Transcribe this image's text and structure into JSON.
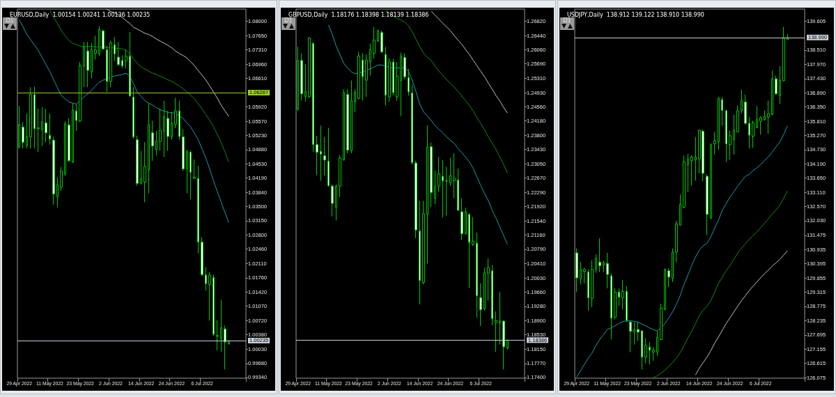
{
  "chart_data": [
    {
      "type": "candlestick",
      "title": "EURUSD,Daily  1.00154 1.00241 1.00136 1.00235",
      "annotations": [
        "D1"
      ],
      "color": "#00c800",
      "categories": [
        "29 Apr 2022",
        null,
        null,
        null,
        null,
        null,
        null,
        null,
        "11 May 2022",
        null,
        null,
        null,
        null,
        null,
        null,
        null,
        "23 May 2022",
        null,
        null,
        null,
        null,
        null,
        null,
        null,
        "2 Jun 2022",
        null,
        null,
        null,
        null,
        null,
        null,
        null,
        "14 Jun 2022",
        null,
        null,
        null,
        null,
        null,
        null,
        null,
        "24 Jun 2022",
        null,
        null,
        null,
        null,
        null,
        null,
        null,
        "6 Jul 2022",
        null,
        null,
        null,
        null,
        null,
        null,
        null,
        null,
        null,
        null,
        null
      ],
      "ohlc": [
        [
          1.0494,
          1.0594,
          1.0491,
          1.0549
        ],
        [
          1.0543,
          1.0555,
          1.0491,
          1.0506
        ],
        [
          1.0498,
          1.0576,
          1.0491,
          1.0519
        ],
        [
          1.0519,
          1.064,
          1.0491,
          1.0622
        ],
        [
          1.0622,
          1.0641,
          1.0491,
          1.0539
        ],
        [
          1.0539,
          1.0588,
          1.0482,
          1.0541
        ],
        [
          1.0537,
          1.0591,
          1.0497,
          1.0556
        ],
        [
          1.0553,
          1.0587,
          1.0506,
          1.0529
        ],
        [
          1.0523,
          1.0576,
          1.05,
          1.0514
        ],
        [
          1.0511,
          1.0519,
          1.0354,
          1.038
        ],
        [
          1.0373,
          1.0421,
          1.0348,
          1.0403
        ],
        [
          1.0397,
          1.0446,
          1.0388,
          1.0436
        ],
        [
          1.0429,
          1.0557,
          1.0424,
          1.0551
        ],
        [
          1.0548,
          1.0564,
          1.0458,
          1.0461
        ],
        [
          1.0458,
          1.0601,
          1.0455,
          1.0584
        ],
        [
          1.0582,
          1.0598,
          1.0534,
          1.0559
        ],
        [
          1.0558,
          1.0701,
          1.0555,
          1.0692
        ],
        [
          1.0691,
          1.075,
          1.064,
          1.0737
        ],
        [
          1.0728,
          1.075,
          1.064,
          1.0681
        ],
        [
          1.0677,
          1.0747,
          1.0661,
          1.0731
        ],
        [
          1.0722,
          1.0765,
          1.0707,
          1.0731
        ],
        [
          1.0722,
          1.0788,
          1.0716,
          1.078
        ],
        [
          1.0777,
          1.078,
          1.0731,
          1.0733
        ],
        [
          1.0731,
          1.074,
          1.0628,
          1.0654
        ],
        [
          1.0654,
          1.0753,
          1.064,
          1.0748
        ],
        [
          1.0743,
          1.0762,
          1.0704,
          1.0721
        ],
        [
          1.0713,
          1.075,
          1.0692,
          1.0695
        ],
        [
          1.0705,
          1.0717,
          1.0686,
          1.0692
        ],
        [
          1.0704,
          1.0731,
          1.0686,
          1.0715
        ],
        [
          1.0715,
          1.0774,
          1.0616,
          1.0619
        ],
        [
          1.0616,
          1.064,
          1.0515,
          1.0519
        ],
        [
          1.0512,
          1.0522,
          1.04,
          1.0406
        ],
        [
          1.0407,
          1.0485,
          1.0403,
          1.0417
        ],
        [
          1.0409,
          1.0506,
          1.036,
          1.0447
        ],
        [
          1.0439,
          1.0601,
          1.0382,
          1.0549
        ],
        [
          1.0529,
          1.0558,
          1.0461,
          1.0497
        ],
        [
          1.0488,
          1.0534,
          1.0473,
          1.0509
        ],
        [
          1.0508,
          1.0588,
          1.0485,
          1.0535
        ],
        [
          1.0533,
          1.0607,
          1.047,
          1.0569
        ],
        [
          1.0564,
          1.0582,
          1.0485,
          1.052
        ],
        [
          1.052,
          1.0579,
          1.0512,
          1.0552
        ],
        [
          1.055,
          1.0614,
          1.054,
          1.0582
        ],
        [
          1.0582,
          1.0607,
          1.0512,
          1.052
        ],
        [
          1.0519,
          1.0537,
          1.0436,
          1.0441
        ],
        [
          1.0442,
          1.0488,
          1.0382,
          1.0483
        ],
        [
          1.0482,
          1.0485,
          1.0367,
          1.0433
        ],
        [
          1.0418,
          1.0464,
          1.0418,
          1.0421
        ],
        [
          1.0418,
          1.0449,
          1.0236,
          1.0263
        ],
        [
          1.0263,
          1.0275,
          1.0181,
          1.0184
        ],
        [
          1.0183,
          1.0202,
          1.0145,
          1.0162
        ],
        [
          1.016,
          1.019,
          1.0072,
          1.0183
        ],
        [
          1.0177,
          1.0184,
          1.0035,
          1.0039
        ],
        [
          1.0034,
          1.0073,
          1.0,
          1.0036
        ],
        [
          1.0028,
          1.0123,
          0.9996,
          1.0055
        ],
        [
          1.0052,
          1.006,
          0.9953,
          1.002
        ],
        [
          1.00154,
          1.00241,
          1.00136,
          1.00235
        ],
        null,
        null,
        null,
        null
      ],
      "series": [
        {
          "type": "line",
          "color": "#1b9aaa",
          "values": [
            1.0804,
            1.0786,
            1.0768,
            1.0755,
            1.0742,
            1.0729,
            1.0712,
            1.0695,
            1.0678,
            1.0658,
            1.0639,
            1.062,
            1.0612,
            1.0604,
            1.0601,
            1.0599,
            1.0608,
            1.0616,
            1.0624,
            1.0633,
            1.0643,
            1.0652,
            1.0657,
            1.0661,
            1.0664,
            1.0667,
            1.0669,
            1.0671,
            1.0674,
            1.0667,
            1.0648,
            1.0628,
            1.0617,
            1.0607,
            1.0601,
            1.0596,
            1.059,
            1.0585,
            1.0582,
            1.0579,
            1.0578,
            1.0576,
            1.057,
            1.0564,
            1.0553,
            1.0543,
            1.0528,
            1.0512,
            1.0489,
            1.0467,
            1.044,
            1.0412,
            1.0386,
            1.036,
            1.0335,
            1.031,
            null,
            null,
            null,
            null
          ]
        },
        {
          "type": "line",
          "color": "#138a13",
          "values": [
            null,
            null,
            null,
            null,
            null,
            null,
            null,
            null,
            1.0827,
            1.081,
            1.0795,
            1.0778,
            1.0765,
            1.0754,
            1.0747,
            1.0743,
            1.074,
            1.0739,
            1.0739,
            1.0739,
            1.0738,
            1.0738,
            1.0737,
            1.0737,
            1.0736,
            1.0735,
            1.0734,
            1.0733,
            1.0731,
            1.0721,
            1.0709,
            1.0698,
            1.0689,
            1.0684,
            1.0679,
            1.0674,
            1.0671,
            1.0666,
            1.0663,
            1.0658,
            1.0654,
            1.0649,
            1.0643,
            1.0636,
            1.0629,
            1.062,
            1.0612,
            1.0599,
            1.0587,
            1.0573,
            1.0559,
            1.0543,
            1.0525,
            1.0505,
            1.0482,
            1.0458,
            null,
            null,
            null,
            null
          ]
        },
        {
          "type": "line",
          "color": "#c0c0c0",
          "values": [
            null,
            null,
            null,
            null,
            null,
            null,
            null,
            null,
            null,
            null,
            null,
            null,
            null,
            null,
            null,
            null,
            null,
            null,
            null,
            null,
            null,
            null,
            null,
            1.083,
            1.0824,
            1.0821,
            1.0816,
            1.081,
            1.0802,
            1.0795,
            1.0786,
            1.0781,
            1.0776,
            1.0771,
            1.0768,
            1.0763,
            1.0757,
            1.0752,
            1.0747,
            1.0742,
            1.0736,
            1.0728,
            1.0722,
            1.0717,
            1.0711,
            1.0702,
            1.0692,
            1.068,
            1.0669,
            1.0657,
            1.0643,
            1.0628,
            1.0613,
            1.0596,
            1.0582,
            1.0569,
            null,
            null,
            null,
            null
          ]
        }
      ],
      "ylim": [
        0.9932,
        1.083
      ],
      "yticks": [
        {
          "value": 1.08,
          "label": "1.08000"
        },
        {
          "value": 1.0765,
          "label": "1.07650"
        },
        {
          "value": 1.0731,
          "label": "1.07310"
        },
        {
          "value": 1.0696,
          "label": "1.06960"
        },
        {
          "value": 1.0661,
          "label": "1.06610"
        },
        {
          "value": 1.0592,
          "label": "1.05920"
        },
        {
          "value": 1.0557,
          "label": "1.05570"
        },
        {
          "value": 1.0523,
          "label": "1.05230"
        },
        {
          "value": 1.0488,
          "label": "1.04880"
        },
        {
          "value": 1.0453,
          "label": "1.04530"
        },
        {
          "value": 1.0419,
          "label": "1.04190"
        },
        {
          "value": 1.0384,
          "label": "1.03840"
        },
        {
          "value": 1.035,
          "label": "1.03500"
        },
        {
          "value": 1.0315,
          "label": "1.03150"
        },
        {
          "value": 1.028,
          "label": "1.02800"
        },
        {
          "value": 1.0246,
          "label": "1.02460"
        },
        {
          "value": 1.0211,
          "label": "1.02110"
        },
        {
          "value": 1.0176,
          "label": "1.01760"
        },
        {
          "value": 1.0142,
          "label": "1.01420"
        },
        {
          "value": 1.0107,
          "label": "1.01070"
        },
        {
          "value": 1.0072,
          "label": "1.00720"
        },
        {
          "value": 1.0038,
          "label": "1.00380"
        },
        {
          "value": 1.0003,
          "label": "1.00030"
        },
        {
          "value": 0.9968,
          "label": "0.99680"
        },
        {
          "value": 0.9934,
          "label": "0.99340"
        }
      ],
      "ref_lines": [
        {
          "axis": "y",
          "value": 1.06267,
          "label": "1.06267",
          "color": "#9acd32"
        },
        {
          "axis": "y",
          "value": 1.00235,
          "label": "1.00235",
          "color": "#c8d0d8"
        }
      ]
    },
    {
      "type": "candlestick",
      "title": "GBPUSD,Daily  1.18176 1.18398 1.18139 1.18386",
      "annotations": [
        "D1"
      ],
      "color": "#00c800",
      "categories": [
        "29 Apr 2022",
        null,
        null,
        null,
        null,
        null,
        null,
        null,
        "11 May 2022",
        null,
        null,
        null,
        null,
        null,
        null,
        null,
        "23 May 2022",
        null,
        null,
        null,
        null,
        null,
        null,
        null,
        "2 Jun 2022",
        null,
        null,
        null,
        null,
        null,
        null,
        null,
        "14 Jun 2022",
        null,
        null,
        null,
        null,
        null,
        null,
        null,
        "24 Jun 2022",
        null,
        null,
        null,
        null,
        null,
        null,
        null,
        "6 Jul 2022",
        null,
        null,
        null,
        null,
        null,
        null,
        null,
        null,
        null,
        null,
        null
      ],
      "ohlc": [
        [
          1.2449,
          1.2614,
          1.2445,
          1.2578
        ],
        [
          1.2578,
          1.2597,
          1.2472,
          1.249
        ],
        [
          1.2483,
          1.2568,
          1.2469,
          1.2497
        ],
        [
          1.2483,
          1.264,
          1.2478,
          1.2637
        ],
        [
          1.2623,
          1.2627,
          1.2336,
          1.2356
        ],
        [
          1.2356,
          1.2379,
          1.2275,
          1.2335
        ],
        [
          1.2338,
          1.2406,
          1.226,
          1.233
        ],
        [
          1.2326,
          1.2376,
          1.2274,
          1.2315
        ],
        [
          1.2312,
          1.24,
          1.2244,
          1.2247
        ],
        [
          1.2246,
          1.225,
          1.2166,
          1.22
        ],
        [
          1.219,
          1.225,
          1.2155,
          1.2246
        ],
        [
          1.2246,
          1.2328,
          1.2217,
          1.232
        ],
        [
          1.2315,
          1.2502,
          1.2313,
          1.2493
        ],
        [
          1.2488,
          1.2502,
          1.2333,
          1.2341
        ],
        [
          1.234,
          1.2525,
          1.2333,
          1.2472
        ],
        [
          1.2469,
          1.2502,
          1.2442,
          1.2493
        ],
        [
          1.2478,
          1.2601,
          1.2475,
          1.259
        ],
        [
          1.2579,
          1.2597,
          1.2472,
          1.2535
        ],
        [
          1.2526,
          1.2594,
          1.2482,
          1.2579
        ],
        [
          1.2574,
          1.2623,
          1.2538,
          1.2607
        ],
        [
          1.2597,
          1.2667,
          1.2583,
          1.2632
        ],
        [
          1.263,
          1.266,
          1.2627,
          1.2657
        ],
        [
          1.2652,
          1.2657,
          1.2597,
          1.2601
        ],
        [
          1.2594,
          1.2614,
          1.2459,
          1.2486
        ],
        [
          1.2482,
          1.2584,
          1.2469,
          1.2574
        ],
        [
          1.2574,
          1.2583,
          1.2486,
          1.2493
        ],
        [
          1.2482,
          1.2574,
          1.2472,
          1.2537
        ],
        [
          1.2525,
          1.2599,
          1.2431,
          1.259
        ],
        [
          1.2586,
          1.2597,
          1.2528,
          1.2535
        ],
        [
          1.2533,
          1.2556,
          1.2485,
          1.2495
        ],
        [
          1.2492,
          1.2515,
          1.2303,
          1.2308
        ],
        [
          1.2307,
          1.2313,
          1.2108,
          1.213
        ],
        [
          1.2127,
          1.2207,
          1.1933,
          1.1996
        ],
        [
          1.1991,
          1.2207,
          1.1986,
          1.2173
        ],
        [
          1.2171,
          1.2407,
          1.2041,
          1.235
        ],
        [
          1.235,
          1.2361,
          1.2191,
          1.2229
        ],
        [
          1.2214,
          1.2287,
          1.2198,
          1.2246
        ],
        [
          1.2246,
          1.2323,
          1.2231,
          1.2279
        ],
        [
          1.2272,
          1.2315,
          1.2163,
          1.226
        ],
        [
          1.2259,
          1.2297,
          1.2168,
          1.226
        ],
        [
          1.2254,
          1.2321,
          1.2246,
          1.2274
        ],
        [
          1.226,
          1.2333,
          1.2214,
          1.2267
        ],
        [
          1.2262,
          1.2292,
          1.218,
          1.2182
        ],
        [
          1.2178,
          1.2214,
          1.2103,
          1.212
        ],
        [
          1.212,
          1.2189,
          1.2118,
          1.2178
        ],
        [
          1.2171,
          1.2174,
          1.1976,
          1.2097
        ],
        [
          1.2092,
          1.2164,
          1.2088,
          1.21
        ],
        [
          1.2095,
          1.2123,
          1.1898,
          1.1956
        ],
        [
          1.1951,
          1.1989,
          1.1876,
          1.1919
        ],
        [
          1.1921,
          1.203,
          1.1917,
          1.2017
        ],
        [
          1.2016,
          1.2055,
          1.1943,
          1.203
        ],
        [
          1.2022,
          1.2037,
          1.1878,
          1.1895
        ],
        [
          1.1885,
          1.1915,
          1.1808,
          1.189
        ],
        [
          1.1884,
          1.1966,
          1.1827,
          1.1889
        ],
        [
          1.1889,
          1.189,
          1.1761,
          1.1821
        ],
        [
          1.18176,
          1.18398,
          1.18139,
          1.18386
        ],
        null,
        null,
        null,
        null
      ],
      "series": [
        {
          "type": "line",
          "color": "#1b9aaa",
          "values": [
            null,
            null,
            null,
            null,
            null,
            null,
            null,
            null,
            1.2672,
            1.2647,
            1.2617,
            1.2594,
            1.2571,
            1.2558,
            1.2548,
            1.2543,
            1.2545,
            1.2548,
            1.2552,
            1.2556,
            1.2561,
            1.2566,
            1.2566,
            1.2563,
            1.256,
            1.2558,
            1.2558,
            1.2559,
            1.2558,
            1.255,
            1.2526,
            1.2495,
            1.2462,
            1.2442,
            1.2431,
            1.2419,
            1.2406,
            1.2396,
            1.2387,
            1.2376,
            1.2367,
            1.2359,
            1.2346,
            1.2334,
            1.2323,
            1.231,
            1.2293,
            1.227,
            1.2247,
            1.2226,
            1.2207,
            1.2182,
            1.2161,
            1.2138,
            1.2115,
            1.2092,
            null,
            null,
            null,
            null
          ]
        },
        {
          "type": "line",
          "color": "#138a13",
          "values": [
            null,
            null,
            null,
            null,
            null,
            null,
            null,
            null,
            null,
            null,
            null,
            null,
            null,
            null,
            null,
            null,
            null,
            null,
            null,
            null,
            null,
            null,
            null,
            1.2711,
            1.2703,
            1.2695,
            1.269,
            1.2685,
            1.268,
            1.267,
            1.2654,
            1.2634,
            1.2614,
            1.2597,
            1.2586,
            1.2578,
            1.2563,
            1.255,
            1.2539,
            1.2528,
            1.2517,
            1.2508,
            1.2497,
            1.2484,
            1.2472,
            1.2459,
            1.2445,
            1.2427,
            1.2411,
            1.2394,
            1.2376,
            1.2359,
            1.2343,
            1.2323,
            1.2303,
            1.2281,
            null,
            null,
            null,
            null
          ]
        },
        {
          "type": "line",
          "color": "#c0c0c0",
          "values": [
            null,
            null,
            null,
            null,
            null,
            null,
            null,
            null,
            null,
            null,
            null,
            null,
            null,
            null,
            null,
            null,
            null,
            null,
            null,
            null,
            null,
            null,
            null,
            null,
            null,
            null,
            null,
            null,
            null,
            null,
            null,
            null,
            null,
            null,
            null,
            1.2708,
            1.2698,
            1.2687,
            1.2677,
            1.2667,
            1.2657,
            1.2644,
            1.2632,
            1.2621,
            1.2607,
            1.2594,
            1.2579,
            1.2564,
            1.2549,
            1.2535,
            1.2518,
            1.2502,
            1.2485,
            1.2471,
            1.2454,
            1.2439,
            null,
            null,
            null,
            null
          ]
        }
      ],
      "ylim": [
        1.1738,
        1.2714
      ],
      "yticks": [
        {
          "value": 1.2682,
          "label": "1.26820"
        },
        {
          "value": 1.2644,
          "label": "1.26440"
        },
        {
          "value": 1.2606,
          "label": "1.26060"
        },
        {
          "value": 1.2569,
          "label": "1.25690"
        },
        {
          "value": 1.2531,
          "label": "1.25310"
        },
        {
          "value": 1.2493,
          "label": "1.24930"
        },
        {
          "value": 1.2456,
          "label": "1.24560"
        },
        {
          "value": 1.2418,
          "label": "1.24180"
        },
        {
          "value": 1.238,
          "label": "1.23800"
        },
        {
          "value": 1.2343,
          "label": "1.23430"
        },
        {
          "value": 1.2305,
          "label": "1.23050"
        },
        {
          "value": 1.2267,
          "label": "1.22670"
        },
        {
          "value": 1.2229,
          "label": "1.22290"
        },
        {
          "value": 1.2192,
          "label": "1.21920"
        },
        {
          "value": 1.2154,
          "label": "1.21540"
        },
        {
          "value": 1.2116,
          "label": "1.21160"
        },
        {
          "value": 1.2079,
          "label": "1.20790"
        },
        {
          "value": 1.2041,
          "label": "1.20410"
        },
        {
          "value": 1.2003,
          "label": "1.20030"
        },
        {
          "value": 1.1966,
          "label": "1.19660"
        },
        {
          "value": 1.1928,
          "label": "1.19280"
        },
        {
          "value": 1.189,
          "label": "1.18900"
        },
        {
          "value": 1.1853,
          "label": "1.18530"
        },
        {
          "value": 1.1815,
          "label": "1.18150"
        },
        {
          "value": 1.1777,
          "label": "1.17770"
        },
        {
          "value": 1.174,
          "label": "1.17400"
        }
      ],
      "ref_lines": [
        {
          "axis": "y",
          "value": 1.18386,
          "label": "1.18386",
          "color": "#c8d0d8"
        }
      ]
    },
    {
      "type": "candlestick",
      "title": "USDJPY,Daily  138.912 139.122 138.910 138.990",
      "annotations": [
        "D1"
      ],
      "color": "#00c800",
      "categories": [
        "29 Apr 2022",
        null,
        null,
        null,
        null,
        null,
        null,
        null,
        "11 May 2022",
        null,
        null,
        null,
        null,
        null,
        null,
        null,
        "23 May 2022",
        null,
        null,
        null,
        null,
        null,
        null,
        null,
        "2 Jun 2022",
        null,
        null,
        null,
        null,
        null,
        null,
        null,
        "14 Jun 2022",
        null,
        null,
        null,
        null,
        null,
        null,
        null,
        "24 Jun 2022",
        null,
        null,
        null,
        null,
        null,
        null,
        null,
        "6 Jul 2022",
        null,
        null,
        null,
        null,
        null,
        null,
        null,
        null,
        null,
        null,
        null
      ],
      "ohlc": [
        [
          130.81,
          130.98,
          129.32,
          129.86
        ],
        [
          129.83,
          130.46,
          129.61,
          130.18
        ],
        [
          130.11,
          130.24,
          129.65,
          130.18
        ],
        [
          130.08,
          130.18,
          128.61,
          129.1
        ],
        [
          129.09,
          130.53,
          128.75,
          130.18
        ],
        [
          130.18,
          130.75,
          130.05,
          130.6
        ],
        [
          130.46,
          131.36,
          130.08,
          130.32
        ],
        [
          130.34,
          130.51,
          130.08,
          130.43
        ],
        [
          130.41,
          130.81,
          129.46,
          129.99
        ],
        [
          129.94,
          130.03,
          127.52,
          128.33
        ],
        [
          128.37,
          129.46,
          128.28,
          129.32
        ],
        [
          129.32,
          129.46,
          128.8,
          129.13
        ],
        [
          129.1,
          129.77,
          128.66,
          129.35
        ],
        [
          129.35,
          129.54,
          128.18,
          128.25
        ],
        [
          128.18,
          128.23,
          127.04,
          127.83
        ],
        [
          127.8,
          128.18,
          127.33,
          127.9
        ],
        [
          127.9,
          128.18,
          127.47,
          127.8
        ],
        [
          127.85,
          127.87,
          126.38,
          126.85
        ],
        [
          126.85,
          127.57,
          126.62,
          127.3
        ],
        [
          127.23,
          127.42,
          126.57,
          127.11
        ],
        [
          127.04,
          127.23,
          126.71,
          127.11
        ],
        [
          127.04,
          127.85,
          126.9,
          127.61
        ],
        [
          127.52,
          128.88,
          127.49,
          128.71
        ],
        [
          128.66,
          130.22,
          128.63,
          130.18
        ],
        [
          130.13,
          130.22,
          129.51,
          129.89
        ],
        [
          129.84,
          130.98,
          129.7,
          130.84
        ],
        [
          130.84,
          132.03,
          130.46,
          131.91
        ],
        [
          131.86,
          133.03,
          131.84,
          132.65
        ],
        [
          132.55,
          134.5,
          132.5,
          134.26
        ],
        [
          134.16,
          134.57,
          133.12,
          134.38
        ],
        [
          134.31,
          134.52,
          133.36,
          134.45
        ],
        [
          134.34,
          135.21,
          133.55,
          134.45
        ],
        [
          134.38,
          135.49,
          133.83,
          135.47
        ],
        [
          135.43,
          135.49,
          133.53,
          133.83
        ],
        [
          133.72,
          133.79,
          131.48,
          132.27
        ],
        [
          132.12,
          134.97,
          132.1,
          134.92
        ],
        [
          134.95,
          135.4,
          134.54,
          135.07
        ],
        [
          135.02,
          136.73,
          134.73,
          136.68
        ],
        [
          136.63,
          136.73,
          135.64,
          136.22
        ],
        [
          136.21,
          136.25,
          134.26,
          134.95
        ],
        [
          134.92,
          135.45,
          134.35,
          135.26
        ],
        [
          135.11,
          136.06,
          134.54,
          135.47
        ],
        [
          135.4,
          136.4,
          135.4,
          136.21
        ],
        [
          136.21,
          137.01,
          136.11,
          136.6
        ],
        [
          136.54,
          136.82,
          135.68,
          135.73
        ],
        [
          135.73,
          135.97,
          134.78,
          135.28
        ],
        [
          135.24,
          135.83,
          134.8,
          135.75
        ],
        [
          135.56,
          136.38,
          135.56,
          135.87
        ],
        [
          135.81,
          136.0,
          135.3,
          135.94
        ],
        [
          135.87,
          136.22,
          135.83,
          136.0
        ],
        [
          135.97,
          136.59,
          135.33,
          136.09
        ],
        [
          136.06,
          137.74,
          136.04,
          137.42
        ],
        [
          137.42,
          137.54,
          136.82,
          136.85
        ],
        [
          136.79,
          137.9,
          136.47,
          137.36
        ],
        [
          137.35,
          139.39,
          137.33,
          138.96
        ],
        [
          138.912,
          139.122,
          138.91,
          138.99
        ],
        null,
        null,
        null,
        null
      ],
      "series": [
        {
          "type": "line",
          "color": "#1b9aaa",
          "values": [
            126.09,
            126.33,
            126.57,
            126.81,
            127.0,
            127.28,
            127.52,
            127.71,
            127.9,
            127.96,
            128.04,
            128.12,
            128.2,
            128.23,
            128.23,
            128.21,
            128.18,
            128.11,
            128.04,
            127.96,
            127.89,
            127.85,
            127.95,
            128.12,
            128.33,
            128.56,
            128.85,
            129.18,
            129.61,
            129.96,
            130.32,
            130.65,
            130.91,
            131.08,
            131.17,
            131.41,
            131.74,
            132.05,
            132.43,
            132.67,
            132.93,
            133.12,
            133.34,
            133.53,
            133.71,
            133.79,
            133.93,
            134.04,
            134.16,
            134.31,
            134.45,
            134.64,
            134.83,
            135.02,
            135.3,
            135.64,
            null,
            null,
            null,
            null
          ]
        },
        {
          "type": "line",
          "color": "#138a13",
          "values": [
            null,
            null,
            null,
            null,
            null,
            null,
            null,
            null,
            null,
            null,
            null,
            null,
            null,
            null,
            null,
            null,
            null,
            null,
            null,
            null,
            126.07,
            126.14,
            126.24,
            126.35,
            126.49,
            126.64,
            126.81,
            127.02,
            127.28,
            127.57,
            127.83,
            128.12,
            128.42,
            128.63,
            128.78,
            128.99,
            129.32,
            129.65,
            129.89,
            130.13,
            130.32,
            130.56,
            130.79,
            130.98,
            131.15,
            131.32,
            131.46,
            131.6,
            131.76,
            131.93,
            132.1,
            132.27,
            132.43,
            132.62,
            132.88,
            133.17,
            null,
            null,
            null,
            null
          ]
        },
        {
          "type": "line",
          "color": "#c0c0c0",
          "values": [
            null,
            null,
            null,
            null,
            null,
            null,
            null,
            null,
            null,
            null,
            null,
            null,
            null,
            null,
            null,
            null,
            null,
            null,
            null,
            null,
            null,
            null,
            null,
            null,
            null,
            null,
            null,
            null,
            null,
            null,
            null,
            126.17,
            126.43,
            126.64,
            126.85,
            127.09,
            127.38,
            127.61,
            127.87,
            128.12,
            128.34,
            128.56,
            128.78,
            128.99,
            129.18,
            129.37,
            129.54,
            129.7,
            129.86,
            130.02,
            130.15,
            130.3,
            130.43,
            130.56,
            130.72,
            130.89,
            null,
            null,
            null,
            null
          ]
        }
      ],
      "ylim": [
        126.05,
        140.07
      ],
      "yticks": [
        {
          "value": 139.605,
          "label": "139.605"
        },
        {
          "value": 138.51,
          "label": "138.510"
        },
        {
          "value": 137.97,
          "label": "137.970"
        },
        {
          "value": 137.43,
          "label": "137.430"
        },
        {
          "value": 136.89,
          "label": "136.890"
        },
        {
          "value": 136.35,
          "label": "136.350"
        },
        {
          "value": 135.81,
          "label": "135.810"
        },
        {
          "value": 135.27,
          "label": "135.270"
        },
        {
          "value": 134.73,
          "label": "134.730"
        },
        {
          "value": 134.19,
          "label": "134.190"
        },
        {
          "value": 133.65,
          "label": "133.650"
        },
        {
          "value": 133.11,
          "label": "133.110"
        },
        {
          "value": 132.57,
          "label": "132.570"
        },
        {
          "value": 132.03,
          "label": "132.030"
        },
        {
          "value": 131.475,
          "label": "131.475"
        },
        {
          "value": 130.935,
          "label": "130.935"
        },
        {
          "value": 130.395,
          "label": "130.395"
        },
        {
          "value": 129.855,
          "label": "129.855"
        },
        {
          "value": 129.315,
          "label": "129.315"
        },
        {
          "value": 128.775,
          "label": "128.775"
        },
        {
          "value": 128.235,
          "label": "128.235"
        },
        {
          "value": 127.695,
          "label": "127.695"
        },
        {
          "value": 127.155,
          "label": "127.155"
        },
        {
          "value": 126.615,
          "label": "126.615"
        },
        {
          "value": 126.075,
          "label": "126.075"
        }
      ],
      "ref_lines": [
        {
          "axis": "y",
          "value": 138.99,
          "label": "138.990",
          "color": "#c8d0d8"
        }
      ]
    }
  ]
}
